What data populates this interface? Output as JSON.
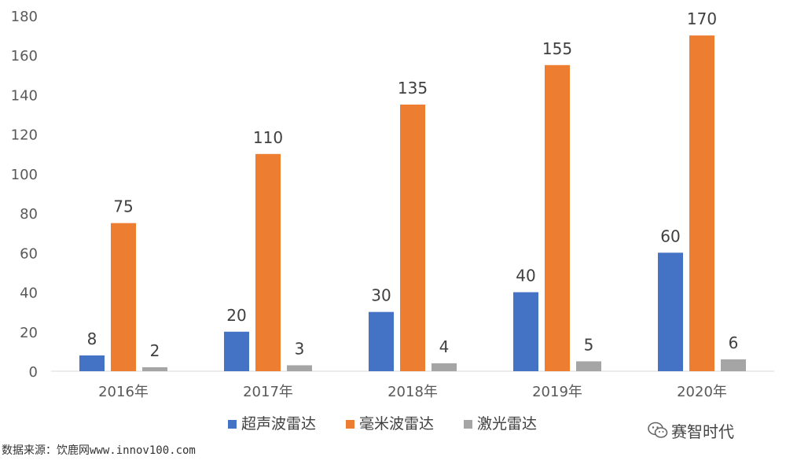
{
  "chart_data": {
    "type": "bar",
    "categories": [
      "2016年",
      "2017年",
      "2018年",
      "2019年",
      "2020年"
    ],
    "series": [
      {
        "name": "超声波雷达",
        "color": "#4472C4",
        "values": [
          8,
          20,
          30,
          40,
          60
        ]
      },
      {
        "name": "毫米波雷达",
        "color": "#ED7D31",
        "values": [
          75,
          110,
          135,
          155,
          170
        ]
      },
      {
        "name": "激光雷达",
        "color": "#A5A5A5",
        "values": [
          2,
          3,
          4,
          5,
          6
        ]
      }
    ],
    "yticks": [
      0,
      20,
      40,
      60,
      80,
      100,
      120,
      140,
      160,
      180
    ],
    "ylim": [
      0,
      180
    ],
    "grid": false,
    "legend": "bottom"
  },
  "watermark": {
    "text": "赛智时代",
    "icon": "wechat-icon"
  },
  "source_text": "数据来源：饮鹿网www.innov100.com"
}
